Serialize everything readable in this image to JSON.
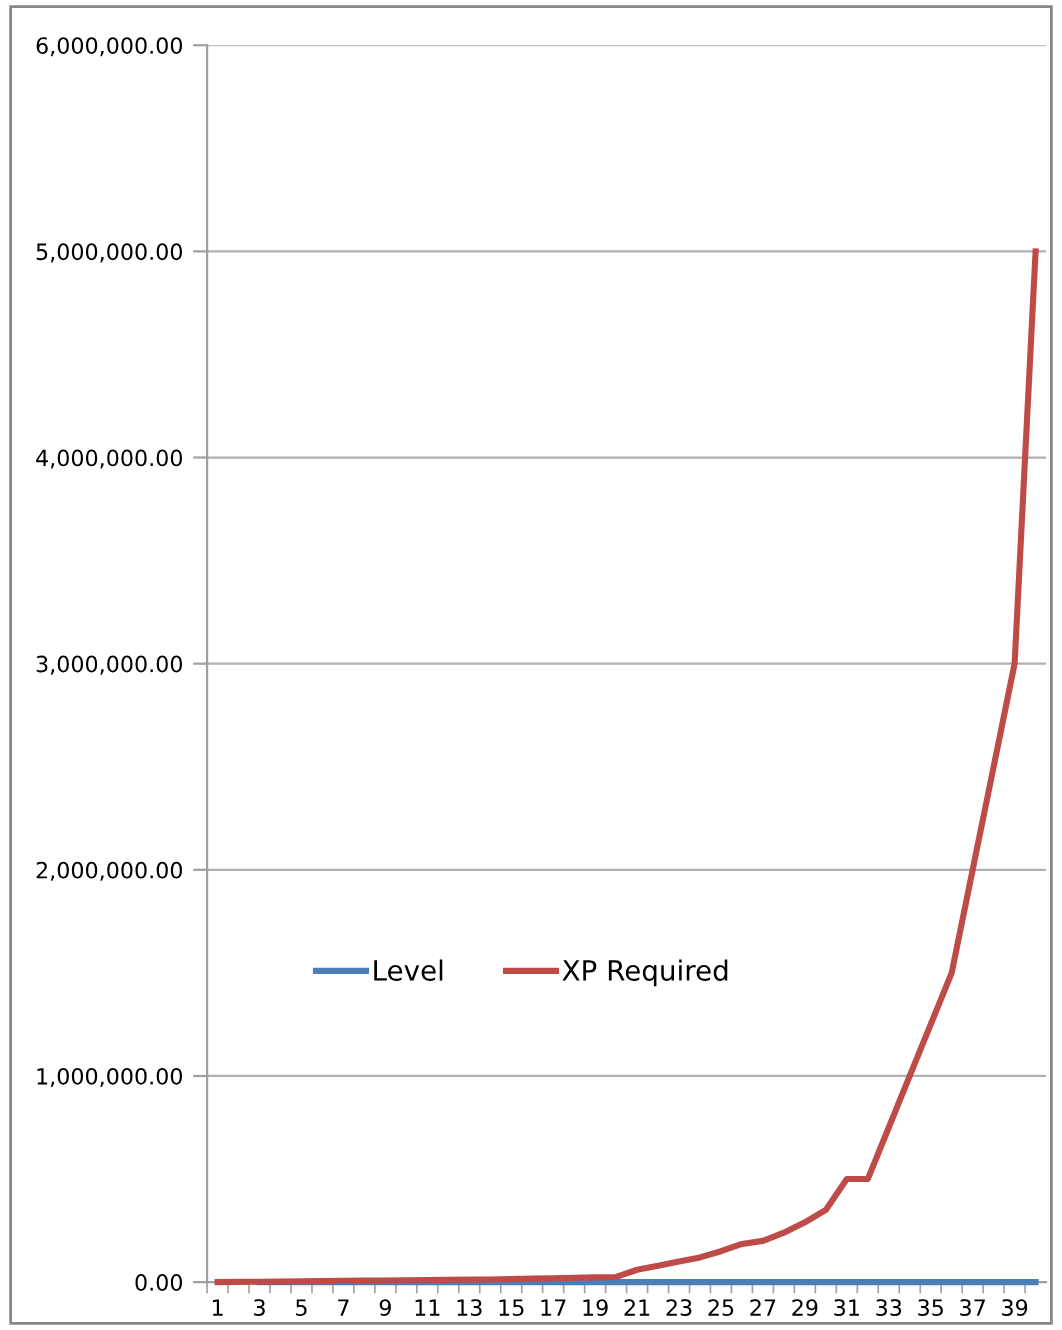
{
  "chart_data": {
    "type": "line",
    "categories": [
      "1",
      null,
      "3",
      null,
      "5",
      null,
      "7",
      null,
      "9",
      null,
      "11",
      null,
      "13",
      null,
      "15",
      null,
      "17",
      null,
      "19",
      null,
      "21",
      null,
      "23",
      null,
      "25",
      null,
      "27",
      null,
      "29",
      null,
      "31",
      null,
      "33",
      null,
      "35",
      null,
      "37",
      null,
      "39",
      null
    ],
    "series": [
      {
        "name": "Level",
        "color": "#4a7ebb",
        "values": [
          null,
          null,
          3,
          4,
          5,
          6,
          7,
          8,
          9,
          10,
          11,
          12,
          13,
          14,
          15,
          16,
          17,
          18,
          19,
          20,
          21,
          22,
          23,
          24,
          25,
          26,
          27,
          28,
          29,
          30,
          31,
          32,
          33,
          34,
          35,
          36,
          37,
          38,
          39,
          40
        ]
      },
      {
        "name": "XP Required",
        "color": "#be4b48",
        "values": [
          0,
          1000,
          2000,
          3000,
          4000,
          5000,
          6000,
          7000,
          8000,
          9000,
          10000,
          11000,
          12000,
          13000,
          15000,
          17000,
          19000,
          21000,
          23000,
          25000,
          60000,
          80000,
          100000,
          120000,
          150000,
          185000,
          200000,
          240000,
          290000,
          350000,
          500000,
          500000,
          750000,
          1000000,
          1250000,
          1500000,
          2000000,
          2500000,
          3000000,
          5000000
        ]
      }
    ],
    "ylim": [
      0,
      6000000
    ],
    "yticks": [
      {
        "value": 0,
        "label": "0.00"
      },
      {
        "value": 1000000,
        "label": "1,000,000.00"
      },
      {
        "value": 2000000,
        "label": "2,000,000.00"
      },
      {
        "value": 3000000,
        "label": "3,000,000.00"
      },
      {
        "value": 4000000,
        "label": "4,000,000.00"
      },
      {
        "value": 5000000,
        "label": "5,000,000.00"
      },
      {
        "value": 6000000,
        "label": "6,000,000.00"
      }
    ],
    "grid": "y",
    "legend": "left",
    "marker": "none",
    "line_style": "solid"
  }
}
